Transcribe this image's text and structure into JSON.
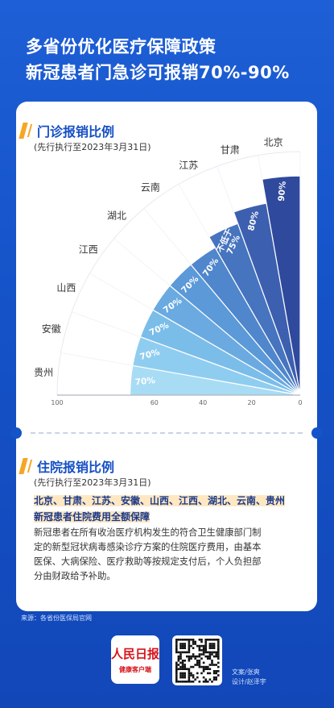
{
  "header": {
    "line1": "多省份优化医疗保障政策",
    "line2": "新冠患者门急诊可报销70%-90%"
  },
  "outpatient": {
    "title": "门诊报销比例",
    "note": "(先行执行至2023年3月31日)"
  },
  "inpatient": {
    "title": "住院报销比例",
    "note": "(先行执行至2023年3月31日)",
    "highlight_line1": "北京、甘肃、江苏、安徽、山西、江西、湖北、云南、贵州",
    "highlight_line2": "新冠患者住院费用全额保障",
    "body_line1": "新冠患者在所有收治医疗机构发生的符合卫生健康部门制",
    "body_line2": "定的新型冠状病毒感染诊疗方案的住院医疗费用，由基本",
    "body_line3": "医保、大病保险、医疗救助等按规定支付后，个人负担部",
    "body_line4": "分由财政给予补助。"
  },
  "footer": {
    "source": "来源：各省份医保局官网",
    "logo_main": "人民日报",
    "logo_sub": "健康客户端",
    "credit_line1": "文案/张爽",
    "credit_line2": "设计/赵泽宇"
  },
  "chart_data": {
    "type": "bar",
    "title": "",
    "categories": [
      "贵州",
      "安徽",
      "山西",
      "江西",
      "湖北",
      "云南",
      "江苏",
      "甘肃",
      "北京"
    ],
    "values": [
      70,
      70,
      70,
      70,
      70,
      70,
      75,
      80,
      90
    ],
    "data_labels": [
      "70%",
      "70%",
      "70%",
      "70%",
      "70%",
      "70%",
      "不低于75%",
      "80%",
      "90%"
    ],
    "axis_ticks": [
      100,
      60,
      40,
      20,
      0
    ],
    "axis_reversed": true,
    "colors": [
      "#a8dcf5",
      "#8fcdf0",
      "#7bbde9",
      "#6aaae1",
      "#5b99d8",
      "#4f86cc",
      "#4674bf",
      "#3d5fb0",
      "#2f4a9c"
    ]
  }
}
